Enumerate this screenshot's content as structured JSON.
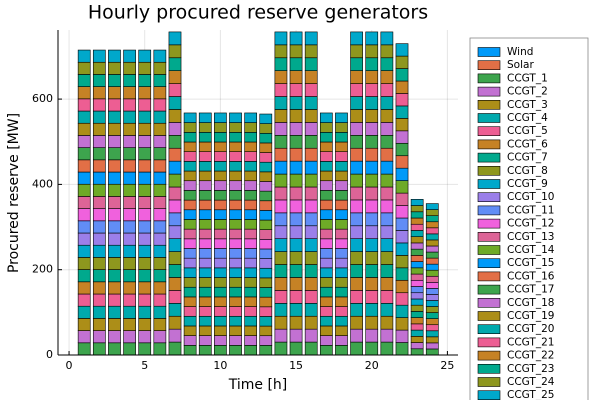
{
  "chart_data": {
    "type": "stacked_bar",
    "title": "Hourly procured reserve generators",
    "x_label": "Time [h]",
    "y_label": "Procured reserve [MW]",
    "categories": [
      1,
      2,
      3,
      4,
      5,
      6,
      7,
      8,
      9,
      10,
      11,
      12,
      13,
      14,
      15,
      16,
      17,
      18,
      19,
      20,
      21,
      22,
      23,
      24
    ],
    "xlim": [
      -0.73,
      25.7
    ],
    "xticks": [
      0,
      5,
      10,
      15,
      20,
      25
    ],
    "ylim": [
      0,
      762
    ],
    "yticks": [
      0,
      200,
      400,
      600
    ],
    "legend": "outside-right",
    "series": [
      {
        "name": "Wind",
        "color": "#009af9",
        "values": [
          0,
          0,
          0,
          0,
          0,
          0,
          0,
          0,
          0,
          0,
          0,
          0,
          0,
          0,
          0,
          0,
          0,
          0,
          0,
          0,
          0,
          0,
          0,
          0
        ]
      },
      {
        "name": "Solar",
        "color": "#e26f46",
        "values": [
          0,
          0,
          0,
          0,
          0,
          0,
          0,
          0,
          0,
          0,
          0,
          0,
          0,
          0,
          0,
          0,
          0,
          0,
          0,
          0,
          0,
          0,
          0,
          0
        ]
      },
      {
        "name": "CCGT_1",
        "color": "#3da44d",
        "values": [
          28.6,
          28.6,
          28.6,
          28.6,
          28.6,
          28.6,
          30.3,
          22.7,
          22.7,
          22.7,
          22.7,
          22.7,
          22.6,
          30.3,
          30.3,
          30.3,
          22.7,
          22.7,
          30.3,
          30.3,
          30.3,
          29.2,
          14.6,
          14.2
        ]
      },
      {
        "name": "CCGT_2",
        "color": "#c271d2",
        "values": [
          28.6,
          28.6,
          28.6,
          28.6,
          28.6,
          28.6,
          30.3,
          22.7,
          22.7,
          22.7,
          22.7,
          22.7,
          22.6,
          30.3,
          30.3,
          30.3,
          22.7,
          22.7,
          30.3,
          30.3,
          30.3,
          29.2,
          14.6,
          14.2
        ]
      },
      {
        "name": "CCGT_3",
        "color": "#ac8e18",
        "values": [
          28.6,
          28.6,
          28.6,
          28.6,
          28.6,
          28.6,
          30.3,
          22.7,
          22.7,
          22.7,
          22.7,
          22.7,
          22.6,
          30.3,
          30.3,
          30.3,
          22.7,
          22.7,
          30.3,
          30.3,
          30.3,
          29.2,
          14.6,
          14.2
        ]
      },
      {
        "name": "CCGT_4",
        "color": "#00a9ad",
        "values": [
          28.6,
          28.6,
          28.6,
          28.6,
          28.6,
          28.6,
          30.3,
          22.7,
          22.7,
          22.7,
          22.7,
          22.7,
          22.6,
          30.3,
          30.3,
          30.3,
          22.7,
          22.7,
          30.3,
          30.3,
          30.3,
          29.2,
          14.6,
          14.2
        ]
      },
      {
        "name": "CCGT_5",
        "color": "#ed5e93",
        "values": [
          28.6,
          28.6,
          28.6,
          28.6,
          28.6,
          28.6,
          30.3,
          22.7,
          22.7,
          22.7,
          22.7,
          22.7,
          22.6,
          30.3,
          30.3,
          30.3,
          22.7,
          22.7,
          30.3,
          30.3,
          30.3,
          29.2,
          14.6,
          14.2
        ]
      },
      {
        "name": "CCGT_6",
        "color": "#c68225",
        "values": [
          28.6,
          28.6,
          28.6,
          28.6,
          28.6,
          28.6,
          30.3,
          22.7,
          22.7,
          22.7,
          22.7,
          22.7,
          22.6,
          30.3,
          30.3,
          30.3,
          22.7,
          22.7,
          30.3,
          30.3,
          30.3,
          29.2,
          14.6,
          14.2
        ]
      },
      {
        "name": "CCGT_7",
        "color": "#00a98d",
        "values": [
          28.6,
          28.6,
          28.6,
          28.6,
          28.6,
          28.6,
          30.3,
          22.7,
          22.7,
          22.7,
          22.7,
          22.7,
          22.6,
          30.3,
          30.3,
          30.3,
          22.7,
          22.7,
          30.3,
          30.3,
          30.3,
          29.2,
          14.6,
          14.2
        ]
      },
      {
        "name": "CCGT_8",
        "color": "#8e971e",
        "values": [
          28.6,
          28.6,
          28.6,
          28.6,
          28.6,
          28.6,
          30.3,
          22.7,
          22.7,
          22.7,
          22.7,
          22.7,
          22.6,
          30.3,
          30.3,
          30.3,
          22.7,
          22.7,
          30.3,
          30.3,
          30.3,
          29.2,
          14.6,
          14.2
        ]
      },
      {
        "name": "CCGT_9",
        "color": "#00a8cb",
        "values": [
          28.6,
          28.6,
          28.6,
          28.6,
          28.6,
          28.6,
          30.3,
          22.7,
          22.7,
          22.7,
          22.7,
          22.7,
          22.6,
          30.3,
          30.3,
          30.3,
          22.7,
          22.7,
          30.3,
          30.3,
          30.3,
          29.2,
          14.6,
          14.2
        ]
      },
      {
        "name": "CCGT_10",
        "color": "#9b7fe9",
        "values": [
          28.6,
          28.6,
          28.6,
          28.6,
          28.6,
          28.6,
          30.3,
          22.7,
          22.7,
          22.7,
          22.7,
          22.7,
          22.6,
          30.3,
          30.3,
          30.3,
          22.7,
          22.7,
          30.3,
          30.3,
          30.3,
          29.2,
          14.6,
          14.2
        ]
      },
      {
        "name": "CCGT_11",
        "color": "#618df6",
        "values": [
          28.6,
          28.6,
          28.6,
          28.6,
          28.6,
          28.6,
          30.3,
          22.7,
          22.7,
          22.7,
          22.7,
          22.7,
          22.6,
          30.3,
          30.3,
          30.3,
          22.7,
          22.7,
          30.3,
          30.3,
          30.3,
          29.2,
          14.6,
          14.2
        ]
      },
      {
        "name": "CCGT_12",
        "color": "#f061dd",
        "values": [
          28.6,
          28.6,
          28.6,
          28.6,
          28.6,
          28.6,
          30.3,
          22.7,
          22.7,
          22.7,
          22.7,
          22.7,
          22.6,
          30.3,
          30.3,
          30.3,
          22.7,
          22.7,
          30.3,
          30.3,
          30.3,
          29.2,
          14.6,
          14.2
        ]
      },
      {
        "name": "CCGT_13",
        "color": "#dd6497",
        "values": [
          28.6,
          28.6,
          28.6,
          28.6,
          28.6,
          28.6,
          30.3,
          22.7,
          22.7,
          22.7,
          22.7,
          22.7,
          22.6,
          30.3,
          30.3,
          30.3,
          22.7,
          22.7,
          30.3,
          30.3,
          30.3,
          29.2,
          14.6,
          14.2
        ]
      },
      {
        "name": "CCGT_14",
        "color": "#6eaa27",
        "values": [
          28.6,
          28.6,
          28.6,
          28.6,
          28.6,
          28.6,
          30.3,
          22.7,
          22.7,
          22.7,
          22.7,
          22.7,
          22.6,
          30.3,
          30.3,
          30.3,
          22.7,
          22.7,
          30.3,
          30.3,
          30.3,
          29.2,
          14.6,
          14.2
        ]
      },
      {
        "name": "CCGT_15",
        "color": "#009af9",
        "values": [
          28.6,
          28.6,
          28.6,
          28.6,
          28.6,
          28.6,
          30.3,
          22.7,
          22.7,
          22.7,
          22.7,
          22.7,
          22.6,
          30.3,
          30.3,
          30.3,
          22.7,
          22.7,
          30.3,
          30.3,
          30.3,
          29.2,
          14.6,
          14.2
        ]
      },
      {
        "name": "CCGT_16",
        "color": "#e26f46",
        "values": [
          28.6,
          28.6,
          28.6,
          28.6,
          28.6,
          28.6,
          30.3,
          22.7,
          22.7,
          22.7,
          22.7,
          22.7,
          22.6,
          30.3,
          30.3,
          30.3,
          22.7,
          22.7,
          30.3,
          30.3,
          30.3,
          29.2,
          14.6,
          14.2
        ]
      },
      {
        "name": "CCGT_17",
        "color": "#3da44d",
        "values": [
          28.6,
          28.6,
          28.6,
          28.6,
          28.6,
          28.6,
          30.3,
          22.7,
          22.7,
          22.7,
          22.7,
          22.7,
          22.6,
          30.3,
          30.3,
          30.3,
          22.7,
          22.7,
          30.3,
          30.3,
          30.3,
          29.2,
          14.6,
          14.2
        ]
      },
      {
        "name": "CCGT_18",
        "color": "#c271d2",
        "values": [
          28.6,
          28.6,
          28.6,
          28.6,
          28.6,
          28.6,
          30.3,
          22.7,
          22.7,
          22.7,
          22.7,
          22.7,
          22.6,
          30.3,
          30.3,
          30.3,
          22.7,
          22.7,
          30.3,
          30.3,
          30.3,
          29.2,
          14.6,
          14.2
        ]
      },
      {
        "name": "CCGT_19",
        "color": "#ac8e18",
        "values": [
          28.6,
          28.6,
          28.6,
          28.6,
          28.6,
          28.6,
          30.3,
          22.7,
          22.7,
          22.7,
          22.7,
          22.7,
          22.6,
          30.3,
          30.3,
          30.3,
          22.7,
          22.7,
          30.3,
          30.3,
          30.3,
          29.2,
          14.6,
          14.2
        ]
      },
      {
        "name": "CCGT_20",
        "color": "#00a9ad",
        "values": [
          28.6,
          28.6,
          28.6,
          28.6,
          28.6,
          28.6,
          30.3,
          22.7,
          22.7,
          22.7,
          22.7,
          22.7,
          22.6,
          30.3,
          30.3,
          30.3,
          22.7,
          22.7,
          30.3,
          30.3,
          30.3,
          29.2,
          14.6,
          14.2
        ]
      },
      {
        "name": "CCGT_21",
        "color": "#ed5e93",
        "values": [
          28.6,
          28.6,
          28.6,
          28.6,
          28.6,
          28.6,
          30.3,
          22.7,
          22.7,
          22.7,
          22.7,
          22.7,
          22.6,
          30.3,
          30.3,
          30.3,
          22.7,
          22.7,
          30.3,
          30.3,
          30.3,
          29.2,
          14.6,
          14.2
        ]
      },
      {
        "name": "CCGT_22",
        "color": "#c68225",
        "values": [
          28.6,
          28.6,
          28.6,
          28.6,
          28.6,
          28.6,
          30.3,
          22.7,
          22.7,
          22.7,
          22.7,
          22.7,
          22.6,
          30.3,
          30.3,
          30.3,
          22.7,
          22.7,
          30.3,
          30.3,
          30.3,
          29.2,
          14.6,
          14.2
        ]
      },
      {
        "name": "CCGT_23",
        "color": "#00a98d",
        "values": [
          28.6,
          28.6,
          28.6,
          28.6,
          28.6,
          28.6,
          30.3,
          22.7,
          22.7,
          22.7,
          22.7,
          22.7,
          22.6,
          30.3,
          30.3,
          30.3,
          22.7,
          22.7,
          30.3,
          30.3,
          30.3,
          29.2,
          14.6,
          14.2
        ]
      },
      {
        "name": "CCGT_24",
        "color": "#8e971e",
        "values": [
          28.6,
          28.6,
          28.6,
          28.6,
          28.6,
          28.6,
          30.3,
          22.7,
          22.7,
          22.7,
          22.7,
          22.7,
          22.6,
          30.3,
          30.3,
          30.3,
          22.7,
          22.7,
          30.3,
          30.3,
          30.3,
          29.2,
          14.6,
          14.2
        ]
      },
      {
        "name": "CCGT_25",
        "color": "#00a8cb",
        "values": [
          28.6,
          28.6,
          28.6,
          28.6,
          28.6,
          28.6,
          30.3,
          22.7,
          22.7,
          22.7,
          22.7,
          22.7,
          22.6,
          30.3,
          30.3,
          30.3,
          22.7,
          22.7,
          30.3,
          30.3,
          30.3,
          29.2,
          14.6,
          14.2
        ]
      }
    ]
  }
}
